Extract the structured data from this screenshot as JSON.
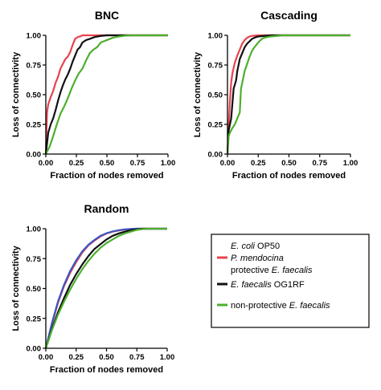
{
  "chart_data": [
    {
      "type": "line",
      "title": "BNC",
      "xlabel": "Fraction of nodes removed",
      "ylabel": "Loss of connectivity",
      "xlim": [
        0,
        1
      ],
      "ylim": [
        0,
        1
      ],
      "xticks": [
        "0.00",
        "0.25",
        "0.50",
        "0.75",
        "1.00"
      ],
      "yticks": [
        "0.00",
        "0.25",
        "0.50",
        "0.75",
        "1.00"
      ],
      "series": [
        {
          "legend_index": 0,
          "color": "#e8434f",
          "x": [
            0,
            0.01,
            0.02,
            0.04,
            0.06,
            0.08,
            0.1,
            0.12,
            0.14,
            0.16,
            0.18,
            0.2,
            0.22,
            0.24,
            0.26,
            0.28,
            0.3,
            0.35,
            0.4,
            0.5,
            1.0
          ],
          "y": [
            0,
            0.35,
            0.42,
            0.48,
            0.53,
            0.6,
            0.65,
            0.72,
            0.76,
            0.8,
            0.82,
            0.86,
            0.92,
            0.97,
            0.985,
            0.99,
            1.0,
            1.0,
            1.0,
            1.0,
            1.0
          ]
        },
        {
          "legend_index": 1,
          "color": "#111111",
          "x": [
            0,
            0.02,
            0.04,
            0.06,
            0.08,
            0.1,
            0.12,
            0.14,
            0.16,
            0.18,
            0.2,
            0.22,
            0.24,
            0.26,
            0.28,
            0.3,
            0.33,
            0.36,
            0.4,
            0.45,
            0.5,
            1.0
          ],
          "y": [
            0,
            0.18,
            0.25,
            0.3,
            0.37,
            0.45,
            0.52,
            0.58,
            0.63,
            0.67,
            0.72,
            0.78,
            0.83,
            0.88,
            0.9,
            0.94,
            0.96,
            0.97,
            0.985,
            0.995,
            1.0,
            1.0
          ]
        },
        {
          "legend_index": 2,
          "color": "#4caf2e",
          "x": [
            0,
            0.03,
            0.06,
            0.09,
            0.12,
            0.15,
            0.18,
            0.21,
            0.24,
            0.27,
            0.3,
            0.33,
            0.36,
            0.39,
            0.42,
            0.45,
            0.5,
            0.55,
            0.6,
            0.65,
            0.7,
            1.0
          ],
          "y": [
            0,
            0.06,
            0.15,
            0.25,
            0.34,
            0.4,
            0.47,
            0.55,
            0.62,
            0.68,
            0.72,
            0.79,
            0.85,
            0.88,
            0.9,
            0.94,
            0.96,
            0.98,
            0.99,
            0.997,
            1.0,
            1.0
          ]
        }
      ]
    },
    {
      "type": "line",
      "title": "Cascading",
      "xlabel": "Fraction of nodes removed",
      "ylabel": "Loss of connectivity",
      "xlim": [
        0,
        1
      ],
      "ylim": [
        0,
        1
      ],
      "xticks": [
        "0.00",
        "0.25",
        "0.50",
        "0.75",
        "1.00"
      ],
      "yticks": [
        "0.00",
        "0.25",
        "0.50",
        "0.75",
        "1.00"
      ],
      "series": [
        {
          "legend_index": 0,
          "color": "#e8434f",
          "x": [
            0,
            0.01,
            0.02,
            0.03,
            0.04,
            0.06,
            0.08,
            0.1,
            0.12,
            0.14,
            0.16,
            0.18,
            0.2,
            0.25,
            0.3,
            0.4,
            1.0
          ],
          "y": [
            0,
            0.25,
            0.45,
            0.6,
            0.68,
            0.77,
            0.83,
            0.88,
            0.93,
            0.96,
            0.98,
            0.99,
            0.995,
            1.0,
            1.0,
            1.0,
            1.0
          ]
        },
        {
          "legend_index": 1,
          "color": "#111111",
          "x": [
            0,
            0.01,
            0.02,
            0.03,
            0.05,
            0.07,
            0.08,
            0.1,
            0.12,
            0.14,
            0.16,
            0.18,
            0.2,
            0.22,
            0.25,
            0.3,
            0.35,
            0.4,
            1.0
          ],
          "y": [
            0,
            0.2,
            0.25,
            0.3,
            0.55,
            0.62,
            0.7,
            0.8,
            0.85,
            0.9,
            0.93,
            0.95,
            0.97,
            0.98,
            0.99,
            0.995,
            1.0,
            1.0,
            1.0
          ]
        },
        {
          "legend_index": 2,
          "color": "#4caf2e",
          "x": [
            0,
            0.01,
            0.02,
            0.04,
            0.06,
            0.08,
            0.1,
            0.11,
            0.12,
            0.14,
            0.16,
            0.18,
            0.2,
            0.22,
            0.25,
            0.28,
            0.3,
            0.35,
            0.4,
            0.45,
            1.0
          ],
          "y": [
            0,
            0.15,
            0.18,
            0.22,
            0.25,
            0.3,
            0.35,
            0.55,
            0.6,
            0.7,
            0.76,
            0.82,
            0.87,
            0.9,
            0.94,
            0.97,
            0.98,
            0.99,
            0.995,
            1.0,
            1.0
          ]
        }
      ]
    },
    {
      "type": "line",
      "title": "Random",
      "xlabel": "Fraction of nodes removed",
      "ylabel": "Loss of connectivity",
      "xlim": [
        0,
        1
      ],
      "ylim": [
        0,
        1
      ],
      "xticks": [
        "0.00",
        "0.25",
        "0.50",
        "0.75",
        "1.00"
      ],
      "yticks": [
        "0.00",
        "0.25",
        "0.50",
        "0.75",
        "1.00"
      ],
      "series": [
        {
          "legend_index": 0,
          "color": "#e8434f",
          "x": [
            0,
            0.05,
            0.1,
            0.15,
            0.2,
            0.25,
            0.3,
            0.35,
            0.4,
            0.45,
            0.5,
            0.55,
            0.6,
            0.65,
            0.7,
            0.75,
            0.8,
            1.0
          ],
          "y": [
            0,
            0.2,
            0.38,
            0.52,
            0.63,
            0.72,
            0.8,
            0.86,
            0.9,
            0.935,
            0.96,
            0.975,
            0.985,
            0.993,
            0.997,
            1.0,
            1.0,
            1.0
          ]
        },
        {
          "legend_index": 0,
          "color": "#3a55c0",
          "x": [
            0,
            0.05,
            0.1,
            0.15,
            0.2,
            0.25,
            0.3,
            0.35,
            0.4,
            0.45,
            0.5,
            0.55,
            0.6,
            0.65,
            0.7,
            0.75,
            0.8,
            1.0
          ],
          "y": [
            0,
            0.21,
            0.39,
            0.53,
            0.645,
            0.735,
            0.81,
            0.865,
            0.905,
            0.94,
            0.962,
            0.977,
            0.987,
            0.994,
            0.998,
            1.0,
            1.0,
            1.0
          ]
        },
        {
          "legend_index": 1,
          "color": "#111111",
          "x": [
            0,
            0.05,
            0.1,
            0.15,
            0.2,
            0.25,
            0.3,
            0.35,
            0.4,
            0.45,
            0.5,
            0.55,
            0.6,
            0.65,
            0.7,
            0.75,
            0.8,
            0.85,
            1.0
          ],
          "y": [
            0,
            0.16,
            0.3,
            0.42,
            0.53,
            0.62,
            0.7,
            0.77,
            0.83,
            0.87,
            0.91,
            0.94,
            0.96,
            0.975,
            0.987,
            0.995,
            1.0,
            1.0,
            1.0
          ]
        },
        {
          "legend_index": 2,
          "color": "#4caf2e",
          "x": [
            0,
            0.05,
            0.1,
            0.15,
            0.2,
            0.25,
            0.3,
            0.35,
            0.4,
            0.45,
            0.5,
            0.55,
            0.6,
            0.65,
            0.7,
            0.75,
            0.8,
            0.85,
            1.0
          ],
          "y": [
            0,
            0.15,
            0.28,
            0.39,
            0.49,
            0.58,
            0.66,
            0.73,
            0.79,
            0.84,
            0.88,
            0.91,
            0.94,
            0.96,
            0.975,
            0.99,
            0.997,
            1.0,
            1.0
          ]
        }
      ]
    }
  ],
  "legend": {
    "placement": "bottom-right",
    "entries": [
      {
        "color": "#e8434f",
        "lines": [
          [
            {
              "t": "E. coli",
              "i": true
            },
            {
              "t": " OP50",
              "i": false
            }
          ],
          [
            {
              "t": "P. mendocina",
              "i": true
            }
          ],
          [
            {
              "t": "protective ",
              "i": false
            },
            {
              "t": "E. faecalis",
              "i": true
            }
          ]
        ]
      },
      {
        "color": "#111111",
        "lines": [
          [
            {
              "t": "E. faecalis",
              "i": true
            },
            {
              "t": " OG1RF",
              "i": false
            }
          ]
        ]
      },
      {
        "color": "#4caf2e",
        "lines": [
          [
            {
              "t": "non-protective ",
              "i": false
            },
            {
              "t": "E. faecalis",
              "i": true
            }
          ]
        ]
      }
    ]
  }
}
